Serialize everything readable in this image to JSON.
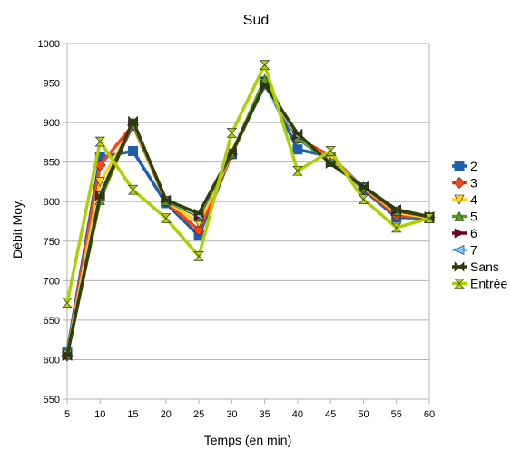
{
  "chart_data": {
    "type": "line",
    "title": "Sud",
    "xlabel": "Temps (en min)",
    "ylabel": "Débit Moy.",
    "ylim": [
      550,
      1000
    ],
    "yticks": [
      550,
      600,
      650,
      700,
      750,
      800,
      850,
      900,
      950,
      1000
    ],
    "x": [
      5,
      10,
      15,
      20,
      25,
      30,
      35,
      40,
      45,
      50,
      55,
      60
    ],
    "grid": "horizontal",
    "legend_position": "right",
    "series": [
      {
        "name": "2",
        "color": "#1f5fa8",
        "marker": "square",
        "values": [
          609,
          856,
          864,
          798,
          757,
          860,
          952,
          866,
          857,
          815,
          780,
          779
        ]
      },
      {
        "name": "3",
        "color": "#ff4411",
        "marker": "diamond",
        "values": [
          605,
          846,
          897,
          800,
          764,
          860,
          948,
          880,
          858,
          817,
          783,
          780
        ]
      },
      {
        "name": "4",
        "color": "#ffd320",
        "marker": "triangle-down",
        "values": [
          606,
          825,
          895,
          801,
          773,
          861,
          950,
          881,
          852,
          818,
          786,
          780
        ]
      },
      {
        "name": "5",
        "color": "#579d1c",
        "marker": "triangle-up",
        "values": [
          607,
          802,
          901,
          801,
          781,
          861,
          955,
          880,
          850,
          819,
          788,
          781
        ]
      },
      {
        "name": "6",
        "color": "#7e0021",
        "marker": "triangle-right",
        "values": [
          605,
          808,
          898,
          803,
          782,
          862,
          947,
          884,
          849,
          819,
          789,
          781
        ]
      },
      {
        "name": "7",
        "color": "#83caff",
        "marker": "triangle-left",
        "values": [
          605,
          810,
          900,
          802,
          783,
          862,
          946,
          884,
          849,
          819,
          790,
          781
        ]
      },
      {
        "name": "Sans",
        "color": "#314004",
        "marker": "bowtie",
        "values": [
          605,
          807,
          902,
          802,
          785,
          862,
          948,
          886,
          848,
          819,
          790,
          781
        ]
      },
      {
        "name": "Entrée",
        "color": "#aecf00",
        "marker": "hourglass",
        "values": [
          672,
          876,
          815,
          779,
          731,
          887,
          973,
          839,
          864,
          803,
          767,
          779
        ]
      }
    ]
  }
}
